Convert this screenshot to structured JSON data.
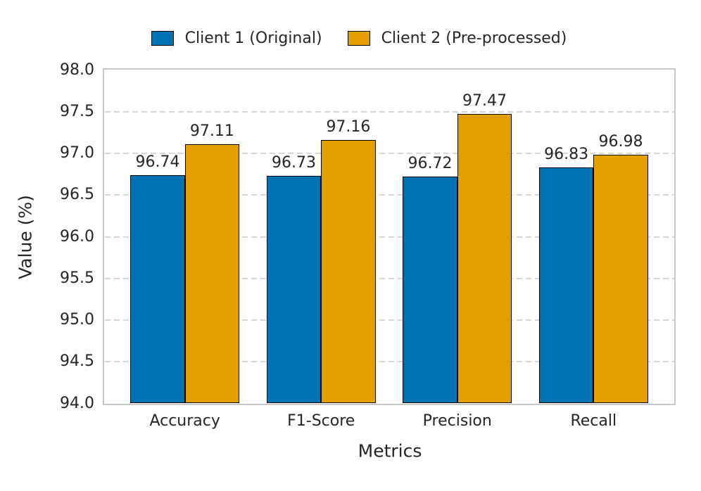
{
  "chart_data": {
    "type": "bar",
    "title": "",
    "xlabel": "Metrics",
    "ylabel": "Value (%)",
    "categories": [
      "Accuracy",
      "F1-Score",
      "Precision",
      "Recall"
    ],
    "series": [
      {
        "name": "Client 1 (Original)",
        "color": "#0072B2",
        "values": [
          96.74,
          96.73,
          96.72,
          96.83
        ]
      },
      {
        "name": "Client 2 (Pre-processed)",
        "color": "#E69F00",
        "values": [
          97.11,
          97.16,
          97.47,
          96.98
        ]
      }
    ],
    "ylim": [
      94.0,
      98.0
    ],
    "ytick_step": 0.5,
    "ytick_labels": [
      "98.0",
      "97.5",
      "97.0",
      "96.5",
      "96.0",
      "95.5",
      "95.0",
      "94.5",
      "94.0"
    ],
    "grid": {
      "axis": "y",
      "style": "dashed",
      "color": "#d8d8d8"
    },
    "legend_position": "upper center",
    "legend_frame": false,
    "bar_edge_color": "#000000",
    "value_labels_shown": true,
    "value_label_format": "0.00",
    "spine_color": "#c9c9c9",
    "text_color": "#262626",
    "background_color": "#ffffff"
  }
}
